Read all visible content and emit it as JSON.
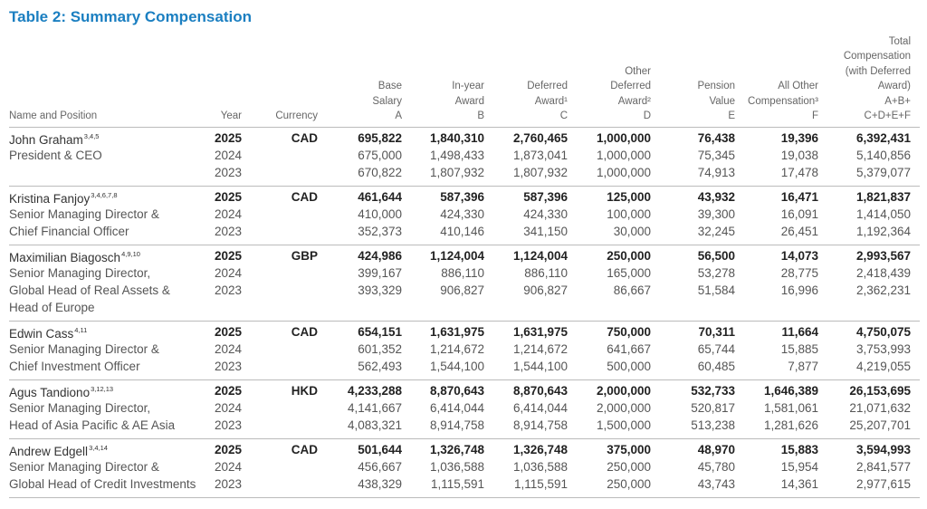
{
  "title": "Table 2: Summary Compensation",
  "header": {
    "name": [
      "Name and Position"
    ],
    "year": [
      "Year"
    ],
    "currency": [
      "Currency"
    ],
    "columns": [
      [
        "Base",
        "Salary",
        "A"
      ],
      [
        "In-year",
        "Award",
        "B"
      ],
      [
        "Deferred",
        "Award¹",
        "C"
      ],
      [
        "Other",
        "Deferred",
        "Award²",
        "D"
      ],
      [
        "Pension",
        "Value",
        "E"
      ],
      [
        "All Other",
        "Compensation³",
        "F"
      ],
      [
        "Total",
        "Compensation",
        "(with Deferred",
        "Award)",
        "A+B+",
        "C+D+E+F"
      ]
    ]
  },
  "rows": [
    {
      "name": "John Graham",
      "notes": "3,4,5",
      "position": [
        "President & CEO"
      ],
      "currency": "CAD",
      "years": [
        {
          "year": "2025",
          "values": [
            "695,822",
            "1,840,310",
            "2,760,465",
            "1,000,000",
            "76,438",
            "19,396",
            "6,392,431"
          ]
        },
        {
          "year": "2024",
          "values": [
            "675,000",
            "1,498,433",
            "1,873,041",
            "1,000,000",
            "75,345",
            "19,038",
            "5,140,856"
          ]
        },
        {
          "year": "2023",
          "values": [
            "670,822",
            "1,807,932",
            "1,807,932",
            "1,000,000",
            "74,913",
            "17,478",
            "5,379,077"
          ]
        }
      ]
    },
    {
      "name": "Kristina Fanjoy",
      "notes": "3,4,6,7,8",
      "position": [
        "Senior Managing Director &",
        "Chief Financial Officer"
      ],
      "currency": "CAD",
      "years": [
        {
          "year": "2025",
          "values": [
            "461,644",
            "587,396",
            "587,396",
            "125,000",
            "43,932",
            "16,471",
            "1,821,837"
          ]
        },
        {
          "year": "2024",
          "values": [
            "410,000",
            "424,330",
            "424,330",
            "100,000",
            "39,300",
            "16,091",
            "1,414,050"
          ]
        },
        {
          "year": "2023",
          "values": [
            "352,373",
            "410,146",
            "341,150",
            "30,000",
            "32,245",
            "26,451",
            "1,192,364"
          ]
        }
      ]
    },
    {
      "name": "Maximilian Biagosch",
      "notes": "4,9,10",
      "position": [
        "Senior Managing Director,",
        "Global Head of Real Assets &",
        "Head of Europe"
      ],
      "currency": "GBP",
      "years": [
        {
          "year": "2025",
          "values": [
            "424,986",
            "1,124,004",
            "1,124,004",
            "250,000",
            "56,500",
            "14,073",
            "2,993,567"
          ]
        },
        {
          "year": "2024",
          "values": [
            "399,167",
            "886,110",
            "886,110",
            "165,000",
            "53,278",
            "28,775",
            "2,418,439"
          ]
        },
        {
          "year": "2023",
          "values": [
            "393,329",
            "906,827",
            "906,827",
            "86,667",
            "51,584",
            "16,996",
            "2,362,231"
          ]
        }
      ]
    },
    {
      "name": "Edwin Cass",
      "notes": "4,11",
      "position": [
        "Senior Managing Director &",
        "Chief Investment Officer"
      ],
      "currency": "CAD",
      "years": [
        {
          "year": "2025",
          "values": [
            "654,151",
            "1,631,975",
            "1,631,975",
            "750,000",
            "70,311",
            "11,664",
            "4,750,075"
          ]
        },
        {
          "year": "2024",
          "values": [
            "601,352",
            "1,214,672",
            "1,214,672",
            "641,667",
            "65,744",
            "15,885",
            "3,753,993"
          ]
        },
        {
          "year": "2023",
          "values": [
            "562,493",
            "1,544,100",
            "1,544,100",
            "500,000",
            "60,485",
            "7,877",
            "4,219,055"
          ]
        }
      ]
    },
    {
      "name": "Agus Tandiono",
      "notes": "3,12,13",
      "position": [
        "Senior Managing Director,",
        "Head of Asia Pacific & AE Asia"
      ],
      "currency": "HKD",
      "years": [
        {
          "year": "2025",
          "values": [
            "4,233,288",
            "8,870,643",
            "8,870,643",
            "2,000,000",
            "532,733",
            "1,646,389",
            "26,153,695"
          ]
        },
        {
          "year": "2024",
          "values": [
            "4,141,667",
            "6,414,044",
            "6,414,044",
            "2,000,000",
            "520,817",
            "1,581,061",
            "21,071,632"
          ]
        },
        {
          "year": "2023",
          "values": [
            "4,083,321",
            "8,914,758",
            "8,914,758",
            "1,500,000",
            "513,238",
            "1,281,626",
            "25,207,701"
          ]
        }
      ]
    },
    {
      "name": "Andrew Edgell",
      "notes": "3,4,14",
      "position": [
        "Senior Managing Director &",
        "Global Head of Credit Investments"
      ],
      "currency": "CAD",
      "years": [
        {
          "year": "2025",
          "values": [
            "501,644",
            "1,326,748",
            "1,326,748",
            "375,000",
            "48,970",
            "15,883",
            "3,594,993"
          ]
        },
        {
          "year": "2024",
          "values": [
            "456,667",
            "1,036,588",
            "1,036,588",
            "250,000",
            "45,780",
            "15,954",
            "2,841,577"
          ]
        },
        {
          "year": "2023",
          "values": [
            "438,329",
            "1,115,591",
            "1,115,591",
            "250,000",
            "43,743",
            "14,361",
            "2,977,615"
          ]
        }
      ]
    }
  ]
}
